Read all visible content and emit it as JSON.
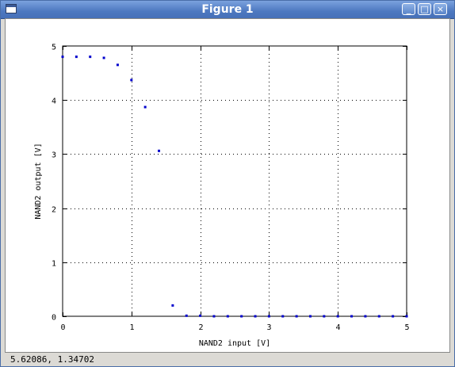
{
  "window": {
    "title": "Figure 1",
    "buttons": {
      "minimize": "_",
      "maximize": "□",
      "close": "×"
    }
  },
  "status": {
    "coords": "5.62086,  1.34702"
  },
  "chart_data": {
    "type": "scatter",
    "xlabel": "NAND2 input [V]",
    "ylabel": "NAND2 output [V]",
    "xlim": [
      0,
      5
    ],
    "ylim": [
      0,
      5
    ],
    "xticks": [
      "0",
      "1",
      "2",
      "3",
      "4",
      "5"
    ],
    "yticks": [
      "0",
      "1",
      "2",
      "3",
      "4",
      "5"
    ],
    "grid": true,
    "series": [
      {
        "color": "#0000cc",
        "x": [
          0,
          0.2,
          0.4,
          0.6,
          0.8,
          1.0,
          1.2,
          1.4,
          1.6,
          1.8,
          2.0,
          2.2,
          2.4,
          2.6,
          2.8,
          3.0,
          3.2,
          3.4,
          3.6,
          3.8,
          4.0,
          4.2,
          4.4,
          4.6,
          4.8,
          5.0
        ],
        "y": [
          4.8,
          4.8,
          4.8,
          4.78,
          4.65,
          4.37,
          3.87,
          3.06,
          0.2,
          0.01,
          0.01,
          0,
          0,
          0,
          0,
          0,
          0,
          0,
          0,
          0,
          0,
          0,
          0,
          0,
          0,
          0
        ]
      }
    ]
  }
}
